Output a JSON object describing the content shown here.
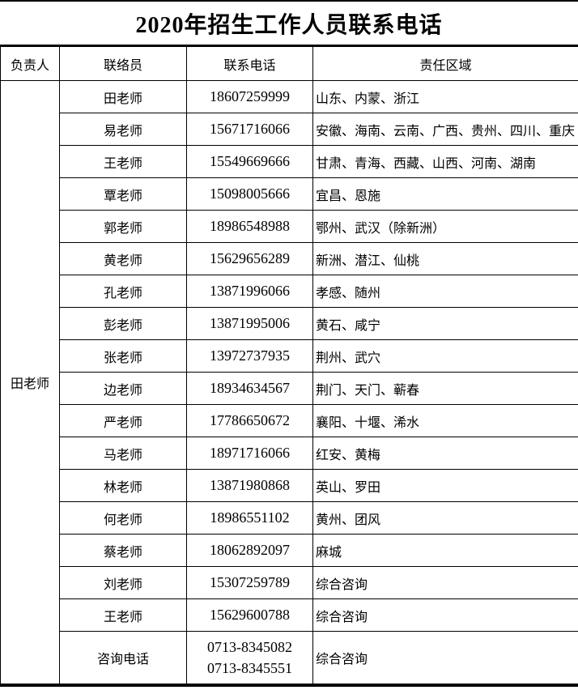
{
  "title": "2020年招生工作人员联系电话",
  "table": {
    "headers": {
      "supervisor": "负责人",
      "liaison": "联络员",
      "phone": "联系电话",
      "region": "责任区域"
    },
    "supervisor": "田老师",
    "rows": [
      {
        "liaison": "田老师",
        "phone": "18607259999",
        "region": "山东、内蒙、浙江"
      },
      {
        "liaison": "易老师",
        "phone": "15671716066",
        "region": "安徽、海南、云南、广西、贵州、四川、重庆"
      },
      {
        "liaison": "王老师",
        "phone": "15549669666",
        "region": "甘肃、青海、西藏、山西、河南、湖南"
      },
      {
        "liaison": "覃老师",
        "phone": "15098005666",
        "region": "宜昌、恩施"
      },
      {
        "liaison": "郭老师",
        "phone": "18986548988",
        "region": "鄂州、武汉（除新洲）"
      },
      {
        "liaison": "黄老师",
        "phone": "15629656289",
        "region": "新洲、潜江、仙桃"
      },
      {
        "liaison": "孔老师",
        "phone": "13871996066",
        "region": "孝感、随州"
      },
      {
        "liaison": "彭老师",
        "phone": "13871995006",
        "region": "黄石、咸宁"
      },
      {
        "liaison": "张老师",
        "phone": "13972737935",
        "region": "荆州、武穴"
      },
      {
        "liaison": "边老师",
        "phone": "18934634567",
        "region": "荆门、天门、蕲春"
      },
      {
        "liaison": "严老师",
        "phone": "17786650672",
        "region": "襄阳、十堰、浠水"
      },
      {
        "liaison": "马老师",
        "phone": "18971716066",
        "region": "红安、黄梅"
      },
      {
        "liaison": "林老师",
        "phone": "13871980868",
        "region": "英山、罗田"
      },
      {
        "liaison": "何老师",
        "phone": "18986551102",
        "region": "黄州、团风"
      },
      {
        "liaison": "蔡老师",
        "phone": "18062892097",
        "region": "麻城"
      },
      {
        "liaison": "刘老师",
        "phone": "15307259789",
        "region": "综合咨询"
      },
      {
        "liaison": "王老师",
        "phone": "15629600788",
        "region": "综合咨询"
      },
      {
        "liaison": "咨询电话",
        "phone_line1": "0713-8345082",
        "phone_line2": "0713-8345551",
        "region": "综合咨询"
      }
    ]
  }
}
